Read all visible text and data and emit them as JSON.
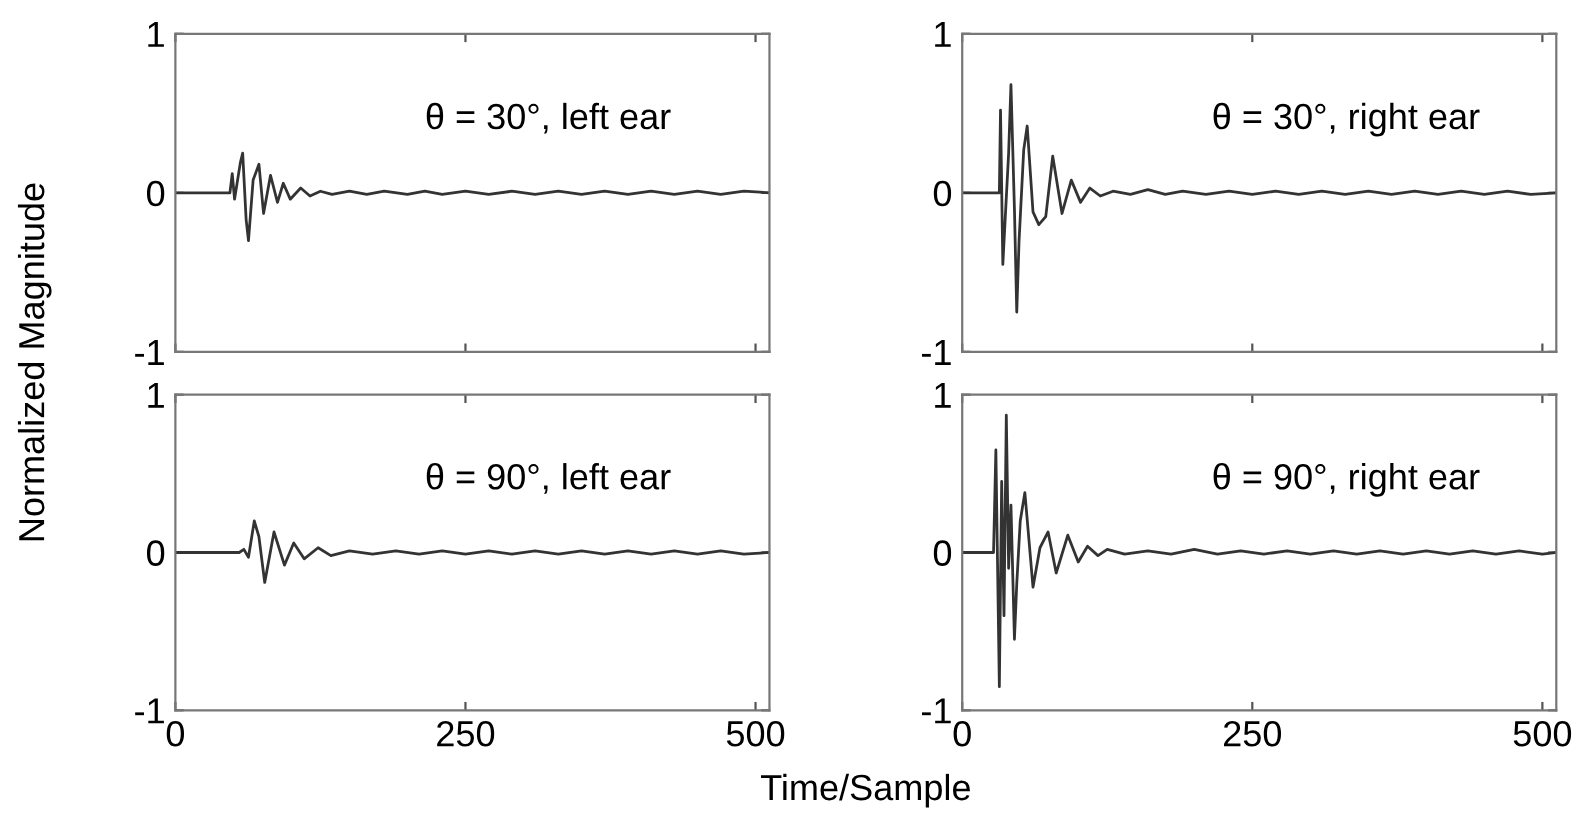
{
  "chart_data": [
    {
      "type": "line",
      "ylabel": "Normalized Magnitude",
      "annotations": [
        "θ = 30°, left ear"
      ],
      "xlim": [
        0,
        512
      ],
      "ylim": [
        -1,
        1
      ],
      "xticks": [
        0,
        250,
        500
      ],
      "yticks": [
        -1,
        0,
        1
      ],
      "tick_labels": "y",
      "grid": false,
      "series": [
        {
          "color": "#333333",
          "x": [
            0,
            47,
            49,
            51,
            56,
            58,
            61,
            63,
            67,
            72,
            76,
            82,
            88,
            93,
            99,
            108,
            116,
            125,
            135,
            150,
            165,
            180,
            200,
            215,
            230,
            250,
            270,
            290,
            310,
            330,
            350,
            370,
            390,
            410,
            430,
            450,
            470,
            490,
            512
          ],
          "values": [
            0,
            0,
            0.12,
            -0.04,
            0.19,
            0.25,
            -0.17,
            -0.3,
            0.08,
            0.18,
            -0.13,
            0.11,
            -0.06,
            0.06,
            -0.04,
            0.03,
            -0.02,
            0.01,
            -0.01,
            0.01,
            -0.01,
            0.01,
            -0.01,
            0.01,
            -0.01,
            0.01,
            -0.01,
            0.01,
            -0.01,
            0.01,
            -0.01,
            0.01,
            -0.01,
            0.01,
            -0.01,
            0.01,
            -0.01,
            0.01,
            0
          ]
        }
      ]
    },
    {
      "type": "line",
      "annotations": [
        "θ = 30°, right ear"
      ],
      "xlim": [
        0,
        512
      ],
      "ylim": [
        -1,
        1
      ],
      "xticks": [
        0,
        250,
        500
      ],
      "yticks": [
        -1,
        0,
        1
      ],
      "tick_labels": "y",
      "grid": false,
      "series": [
        {
          "color": "#333333",
          "x": [
            0,
            32,
            33,
            35,
            40,
            42,
            45,
            47,
            49,
            53,
            56,
            61,
            66,
            72,
            78,
            86,
            94,
            102,
            110,
            119,
            130,
            145,
            160,
            175,
            190,
            210,
            230,
            250,
            270,
            290,
            310,
            330,
            350,
            370,
            390,
            410,
            430,
            450,
            470,
            490,
            512
          ],
          "values": [
            0,
            0,
            0.52,
            -0.45,
            0.25,
            0.68,
            -0.1,
            -0.75,
            -0.3,
            0.27,
            0.42,
            -0.12,
            -0.2,
            -0.15,
            0.23,
            -0.13,
            0.08,
            -0.06,
            0.03,
            -0.02,
            0.01,
            -0.01,
            0.02,
            -0.01,
            0.01,
            -0.01,
            0.01,
            -0.01,
            0.01,
            -0.01,
            0.01,
            -0.01,
            0.01,
            -0.01,
            0.01,
            -0.01,
            0.01,
            -0.01,
            0.01,
            -0.01,
            0
          ]
        }
      ]
    },
    {
      "type": "line",
      "annotations": [
        "θ = 90°, left ear"
      ],
      "xlim": [
        0,
        512
      ],
      "ylim": [
        -1,
        1
      ],
      "xticks": [
        0,
        250,
        500
      ],
      "yticks": [
        -1,
        0,
        1
      ],
      "grid": false,
      "series": [
        {
          "color": "#333333",
          "x": [
            0,
            55,
            59,
            63,
            68,
            72,
            77,
            85,
            94,
            102,
            111,
            123,
            134,
            150,
            170,
            190,
            210,
            230,
            250,
            270,
            290,
            310,
            330,
            350,
            370,
            390,
            410,
            430,
            450,
            470,
            490,
            512
          ],
          "values": [
            0,
            0,
            0.02,
            -0.03,
            0.2,
            0.1,
            -0.19,
            0.13,
            -0.08,
            0.06,
            -0.04,
            0.03,
            -0.02,
            0.01,
            -0.01,
            0.01,
            -0.01,
            0.01,
            -0.01,
            0.01,
            -0.01,
            0.01,
            -0.01,
            0.01,
            -0.01,
            0.01,
            -0.01,
            0.01,
            -0.01,
            0.01,
            -0.01,
            0
          ]
        }
      ]
    },
    {
      "type": "line",
      "xlabel": "Time/Sample",
      "annotations": [
        "θ = 90°, right ear"
      ],
      "xlim": [
        0,
        512
      ],
      "ylim": [
        -1,
        1
      ],
      "xticks": [
        0,
        250,
        500
      ],
      "yticks": [
        -1,
        0,
        1
      ],
      "grid": false,
      "series": [
        {
          "color": "#333333",
          "x": [
            0,
            27,
            29,
            32,
            34,
            36,
            38,
            40,
            42,
            45,
            47,
            50,
            54,
            61,
            67,
            74,
            81,
            91,
            100,
            108,
            117,
            125,
            140,
            160,
            180,
            200,
            220,
            240,
            260,
            280,
            300,
            320,
            340,
            360,
            380,
            400,
            420,
            440,
            460,
            480,
            500,
            512
          ],
          "values": [
            0,
            0,
            0.65,
            -0.85,
            0.45,
            -0.4,
            0.87,
            -0.1,
            0.3,
            -0.55,
            -0.2,
            0.2,
            0.38,
            -0.22,
            0.03,
            0.13,
            -0.13,
            0.11,
            -0.06,
            0.04,
            -0.02,
            0.02,
            -0.01,
            0.01,
            -0.01,
            0.02,
            -0.01,
            0.01,
            -0.01,
            0.01,
            -0.01,
            0.01,
            -0.01,
            0.01,
            -0.01,
            0.01,
            -0.01,
            0.01,
            -0.01,
            0.01,
            -0.01,
            0
          ]
        }
      ]
    }
  ]
}
